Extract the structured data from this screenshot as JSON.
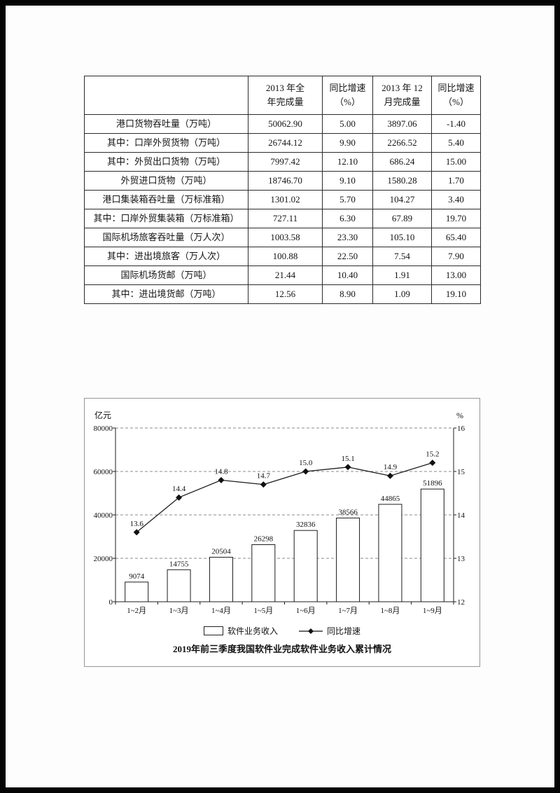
{
  "page": {
    "background_color": "#050505",
    "sheet_color": "#fdfdfd"
  },
  "chart_data": [
    {
      "type": "table",
      "columns": [
        [
          "",
          ""
        ],
        [
          "2013 年全",
          "年完成量"
        ],
        [
          "同比增速",
          "（%）"
        ],
        [
          "2013 年 12",
          "月完成量"
        ],
        [
          "同比增速",
          "（%）"
        ]
      ],
      "rows": [
        [
          "港口货物吞吐量（万吨）",
          "50062.90",
          "5.00",
          "3897.06",
          "-1.40"
        ],
        [
          "其中：口岸外贸货物（万吨）",
          "26744.12",
          "9.90",
          "2266.52",
          "5.40"
        ],
        [
          "其中：外贸出口货物（万吨）",
          "7997.42",
          "12.10",
          "686.24",
          "15.00"
        ],
        [
          "外贸进口货物（万吨）",
          "18746.70",
          "9.10",
          "1580.28",
          "1.70"
        ],
        [
          "港口集装箱吞吐量（万标准箱）",
          "1301.02",
          "5.70",
          "104.27",
          "3.40"
        ],
        [
          "其中：口岸外贸集装箱（万标准箱）",
          "727.11",
          "6.30",
          "67.89",
          "19.70"
        ],
        [
          "国际机场旅客吞吐量（万人次）",
          "1003.58",
          "23.30",
          "105.10",
          "65.40"
        ],
        [
          "其中：进出境旅客（万人次）",
          "100.88",
          "22.50",
          "7.54",
          "7.90"
        ],
        [
          "国际机场货邮（万吨）",
          "21.44",
          "10.40",
          "1.91",
          "13.00"
        ],
        [
          "其中：进出境货邮（万吨）",
          "12.56",
          "8.90",
          "1.09",
          "19.10"
        ]
      ]
    },
    {
      "type": "bar+line",
      "title": "2019年前三季度我国软件业完成软件业务收入累计情况",
      "categories": [
        "1~2月",
        "1~3月",
        "1~4月",
        "1~5月",
        "1~6月",
        "1~7月",
        "1~8月",
        "1~9月"
      ],
      "series": [
        {
          "name": "软件业务收入",
          "type": "bar",
          "axis": "left",
          "values": [
            9074,
            14755,
            20504,
            26298,
            32836,
            38566,
            44865,
            51896
          ]
        },
        {
          "name": "同比增速",
          "type": "line",
          "axis": "right",
          "values": [
            13.6,
            14.4,
            14.8,
            14.7,
            15.0,
            15.1,
            14.9,
            15.2
          ]
        }
      ],
      "left_axis": {
        "unit": "亿元",
        "min": 0,
        "max": 80000,
        "ticks": [
          0,
          20000,
          40000,
          60000,
          80000
        ]
      },
      "right_axis": {
        "unit": "%",
        "min": 12,
        "max": 16,
        "ticks": [
          12,
          13,
          14,
          15,
          16
        ]
      },
      "grid": "dashed-horizontal",
      "legend_position": "bottom",
      "bar_fill": "#ffffff",
      "stroke_color": "#1c1c1c"
    }
  ]
}
